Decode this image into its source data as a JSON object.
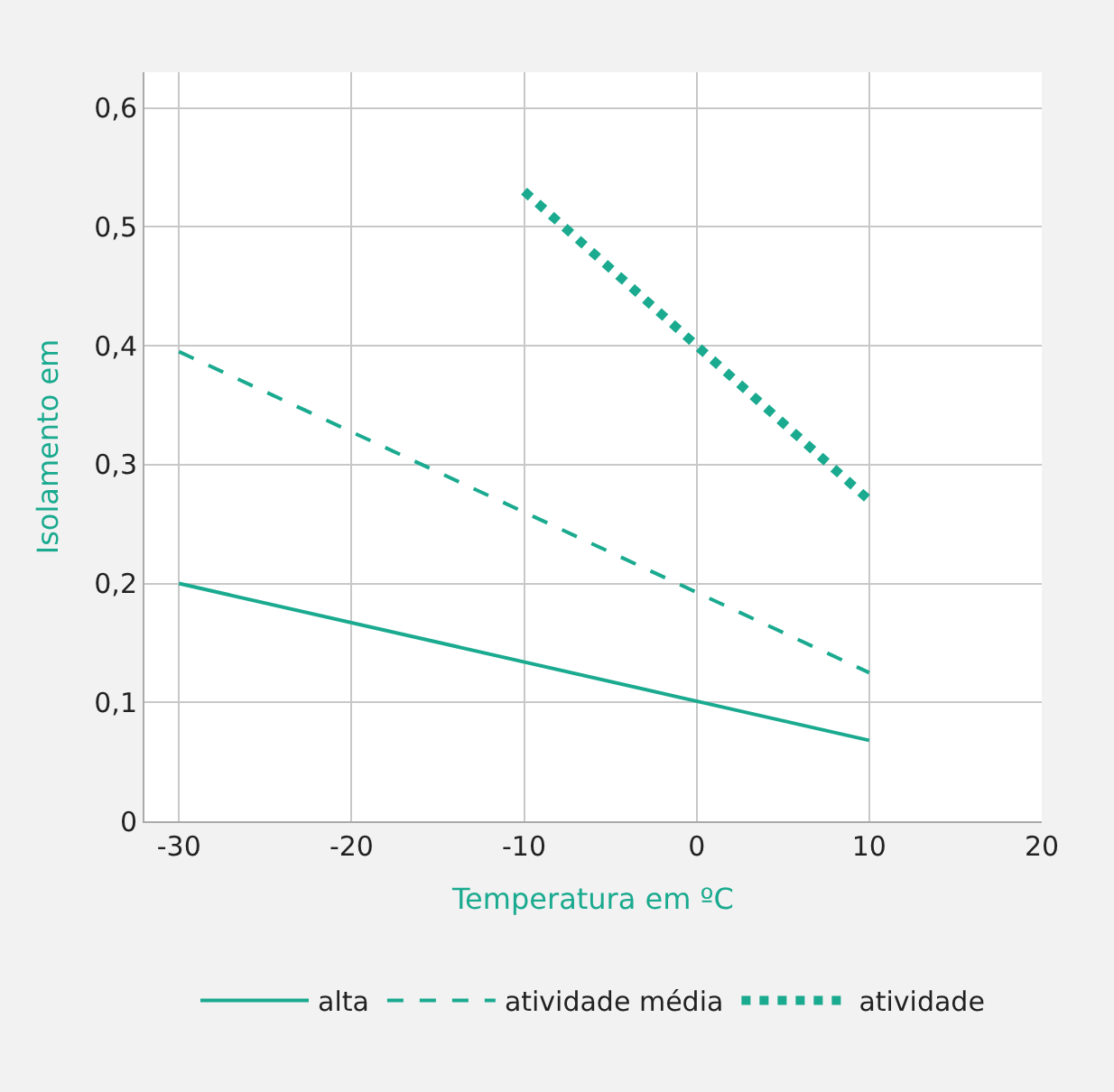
{
  "chart_data": {
    "type": "line",
    "xlabel": "Temperatura em ºC",
    "ylabel": "Isolamento em",
    "series": [
      {
        "name": "alta",
        "color": "#1aaa8f",
        "line_style": "solid",
        "x": [
          -30,
          10
        ],
        "values": [
          0.2,
          0.068
        ]
      },
      {
        "name": "atividade média",
        "color": "#1aaa8f",
        "line_style": "dashed",
        "x": [
          -30,
          10
        ],
        "values": [
          0.395,
          0.125
        ]
      },
      {
        "name": "atividade",
        "color": "#1aaa8f",
        "line_style": "dotted",
        "x": [
          -10,
          10
        ],
        "values": [
          0.53,
          0.27
        ]
      }
    ],
    "xlim": [
      -32,
      20
    ],
    "ylim": [
      0,
      0.63
    ],
    "xticks": [
      -30,
      -20,
      -10,
      0,
      10,
      20
    ],
    "yticks": [
      0,
      {
        "value": 0.1,
        "label": "0,1"
      },
      {
        "value": 0.2,
        "label": "0,2"
      },
      {
        "value": 0.3,
        "label": "0,3"
      },
      {
        "value": 0.4,
        "label": "0,4"
      },
      {
        "value": 0.5,
        "label": "0,5"
      },
      {
        "value": 0.6,
        "label": "0,6"
      }
    ],
    "grid": true,
    "legend": "bottom",
    "marker": "none"
  }
}
